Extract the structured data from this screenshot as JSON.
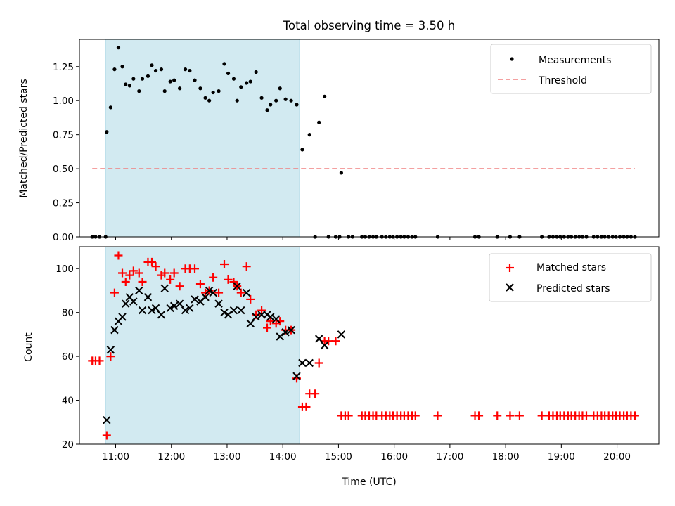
{
  "title": "Total observing time = 3.50 h",
  "chart_data": [
    {
      "type": "scatter",
      "ylabel": "Matched/Predicted stars",
      "ylim": [
        0,
        1.45
      ],
      "yticks": [
        "0.00",
        "0.25",
        "0.50",
        "0.75",
        "1.00",
        "1.25"
      ],
      "xlim": [
        10.35,
        20.75
      ],
      "highlight_span": [
        10.82,
        14.3
      ],
      "threshold": {
        "name": "Threshold",
        "value": 0.5,
        "x": [
          10.58,
          20.32
        ],
        "color": "#f08080"
      },
      "legend": {
        "position": "top-right",
        "entries": [
          "Measurements",
          "Threshold"
        ]
      },
      "series": [
        {
          "name": "Measurements",
          "marker": "dot",
          "color": "#000000",
          "points": [
            [
              10.58,
              0
            ],
            [
              10.64,
              0
            ],
            [
              10.71,
              0
            ],
            [
              10.82,
              0
            ],
            [
              10.84,
              0.77
            ],
            [
              10.91,
              0.95
            ],
            [
              10.98,
              1.23
            ],
            [
              11.05,
              1.39
            ],
            [
              11.12,
              1.25
            ],
            [
              11.18,
              1.12
            ],
            [
              11.25,
              1.11
            ],
            [
              11.32,
              1.16
            ],
            [
              11.42,
              1.07
            ],
            [
              11.48,
              1.16
            ],
            [
              11.58,
              1.18
            ],
            [
              11.65,
              1.26
            ],
            [
              11.72,
              1.22
            ],
            [
              11.82,
              1.23
            ],
            [
              11.88,
              1.07
            ],
            [
              11.98,
              1.14
            ],
            [
              12.05,
              1.15
            ],
            [
              12.15,
              1.09
            ],
            [
              12.25,
              1.23
            ],
            [
              12.33,
              1.22
            ],
            [
              12.42,
              1.15
            ],
            [
              12.52,
              1.09
            ],
            [
              12.61,
              1.02
            ],
            [
              12.68,
              1.0
            ],
            [
              12.75,
              1.06
            ],
            [
              12.85,
              1.07
            ],
            [
              12.95,
              1.27
            ],
            [
              13.02,
              1.2
            ],
            [
              13.12,
              1.16
            ],
            [
              13.18,
              1.0
            ],
            [
              13.25,
              1.1
            ],
            [
              13.35,
              1.13
            ],
            [
              13.42,
              1.14
            ],
            [
              13.52,
              1.21
            ],
            [
              13.62,
              1.02
            ],
            [
              13.72,
              0.93
            ],
            [
              13.78,
              0.97
            ],
            [
              13.88,
              1.0
            ],
            [
              13.95,
              1.09
            ],
            [
              14.05,
              1.01
            ],
            [
              14.15,
              1.0
            ],
            [
              14.25,
              0.97
            ],
            [
              14.35,
              0.64
            ],
            [
              14.48,
              0.75
            ],
            [
              14.58,
              0
            ],
            [
              14.65,
              0.84
            ],
            [
              14.75,
              1.03
            ],
            [
              14.82,
              0
            ],
            [
              14.95,
              0
            ],
            [
              15.02,
              0
            ],
            [
              15.05,
              0.47
            ],
            [
              15.18,
              0
            ],
            [
              15.25,
              0
            ],
            [
              15.42,
              0
            ],
            [
              15.48,
              0
            ],
            [
              15.55,
              0
            ],
            [
              15.62,
              0
            ],
            [
              15.68,
              0
            ],
            [
              15.78,
              0
            ],
            [
              15.85,
              0
            ],
            [
              15.92,
              0
            ],
            [
              15.98,
              0
            ],
            [
              16.05,
              0
            ],
            [
              16.12,
              0
            ],
            [
              16.18,
              0
            ],
            [
              16.25,
              0
            ],
            [
              16.32,
              0
            ],
            [
              16.38,
              0
            ],
            [
              16.78,
              0
            ],
            [
              17.45,
              0
            ],
            [
              17.52,
              0
            ],
            [
              17.85,
              0
            ],
            [
              18.08,
              0
            ],
            [
              18.25,
              0
            ],
            [
              18.65,
              0
            ],
            [
              18.78,
              0
            ],
            [
              18.85,
              0
            ],
            [
              18.92,
              0
            ],
            [
              18.98,
              0
            ],
            [
              19.05,
              0
            ],
            [
              19.12,
              0
            ],
            [
              19.18,
              0
            ],
            [
              19.25,
              0
            ],
            [
              19.32,
              0
            ],
            [
              19.38,
              0
            ],
            [
              19.45,
              0
            ],
            [
              19.58,
              0
            ],
            [
              19.65,
              0
            ],
            [
              19.72,
              0
            ],
            [
              19.78,
              0
            ],
            [
              19.85,
              0
            ],
            [
              19.92,
              0
            ],
            [
              19.98,
              0
            ],
            [
              20.05,
              0
            ],
            [
              20.12,
              0
            ],
            [
              20.18,
              0
            ],
            [
              20.25,
              0
            ],
            [
              20.32,
              0
            ]
          ]
        }
      ]
    },
    {
      "type": "scatter",
      "xlabel": "Time (UTC)",
      "ylabel": "Count",
      "ylim": [
        20,
        110
      ],
      "yticks": [
        "20",
        "40",
        "60",
        "80",
        "100"
      ],
      "xlim": [
        10.35,
        20.75
      ],
      "xticks": [
        "11:00",
        "12:00",
        "13:00",
        "14:00",
        "15:00",
        "16:00",
        "17:00",
        "18:00",
        "19:00",
        "20:00"
      ],
      "highlight_span": [
        10.82,
        14.3
      ],
      "legend": {
        "position": "top-right",
        "entries": [
          "Matched stars",
          "Predicted stars"
        ]
      },
      "series": [
        {
          "name": "Matched stars",
          "marker": "plus",
          "color": "#ff0000",
          "points": [
            [
              10.58,
              58
            ],
            [
              10.64,
              58
            ],
            [
              10.71,
              58
            ],
            [
              10.84,
              24
            ],
            [
              10.91,
              60
            ],
            [
              10.98,
              89
            ],
            [
              11.05,
              106
            ],
            [
              11.12,
              98
            ],
            [
              11.18,
              94
            ],
            [
              11.25,
              97
            ],
            [
              11.32,
              99
            ],
            [
              11.42,
              98
            ],
            [
              11.48,
              94
            ],
            [
              11.58,
              103
            ],
            [
              11.65,
              103
            ],
            [
              11.72,
              101
            ],
            [
              11.82,
              97
            ],
            [
              11.88,
              98
            ],
            [
              11.98,
              95
            ],
            [
              12.05,
              98
            ],
            [
              12.15,
              92
            ],
            [
              12.25,
              100
            ],
            [
              12.33,
              100
            ],
            [
              12.42,
              100
            ],
            [
              12.52,
              93
            ],
            [
              12.61,
              89
            ],
            [
              12.68,
              90
            ],
            [
              12.75,
              96
            ],
            [
              12.85,
              89
            ],
            [
              12.95,
              102
            ],
            [
              13.02,
              95
            ],
            [
              13.12,
              94
            ],
            [
              13.18,
              92
            ],
            [
              13.25,
              89
            ],
            [
              13.35,
              101
            ],
            [
              13.42,
              86
            ],
            [
              13.52,
              79
            ],
            [
              13.62,
              81
            ],
            [
              13.72,
              73
            ],
            [
              13.78,
              76
            ],
            [
              13.88,
              75
            ],
            [
              13.95,
              76
            ],
            [
              14.05,
              72
            ],
            [
              14.15,
              72
            ],
            [
              14.25,
              50
            ],
            [
              14.35,
              37
            ],
            [
              14.42,
              37
            ],
            [
              14.48,
              43
            ],
            [
              14.58,
              43
            ],
            [
              14.65,
              57
            ],
            [
              14.75,
              67
            ],
            [
              14.82,
              67
            ],
            [
              14.95,
              67
            ],
            [
              15.05,
              33
            ],
            [
              15.12,
              33
            ],
            [
              15.18,
              33
            ],
            [
              15.42,
              33
            ],
            [
              15.48,
              33
            ],
            [
              15.55,
              33
            ],
            [
              15.62,
              33
            ],
            [
              15.68,
              33
            ],
            [
              15.78,
              33
            ],
            [
              15.85,
              33
            ],
            [
              15.92,
              33
            ],
            [
              15.98,
              33
            ],
            [
              16.05,
              33
            ],
            [
              16.12,
              33
            ],
            [
              16.18,
              33
            ],
            [
              16.25,
              33
            ],
            [
              16.32,
              33
            ],
            [
              16.38,
              33
            ],
            [
              16.78,
              33
            ],
            [
              17.45,
              33
            ],
            [
              17.52,
              33
            ],
            [
              17.85,
              33
            ],
            [
              18.08,
              33
            ],
            [
              18.25,
              33
            ],
            [
              18.65,
              33
            ],
            [
              18.78,
              33
            ],
            [
              18.85,
              33
            ],
            [
              18.92,
              33
            ],
            [
              18.98,
              33
            ],
            [
              19.05,
              33
            ],
            [
              19.12,
              33
            ],
            [
              19.18,
              33
            ],
            [
              19.25,
              33
            ],
            [
              19.32,
              33
            ],
            [
              19.38,
              33
            ],
            [
              19.45,
              33
            ],
            [
              19.58,
              33
            ],
            [
              19.65,
              33
            ],
            [
              19.72,
              33
            ],
            [
              19.78,
              33
            ],
            [
              19.85,
              33
            ],
            [
              19.92,
              33
            ],
            [
              19.98,
              33
            ],
            [
              20.05,
              33
            ],
            [
              20.12,
              33
            ],
            [
              20.18,
              33
            ],
            [
              20.25,
              33
            ],
            [
              20.32,
              33
            ]
          ]
        },
        {
          "name": "Predicted stars",
          "marker": "x",
          "color": "#000000",
          "points": [
            [
              10.84,
              31
            ],
            [
              10.91,
              63
            ],
            [
              10.98,
              72
            ],
            [
              11.05,
              76
            ],
            [
              11.12,
              78
            ],
            [
              11.18,
              84
            ],
            [
              11.25,
              87
            ],
            [
              11.32,
              85
            ],
            [
              11.42,
              90
            ],
            [
              11.48,
              81
            ],
            [
              11.58,
              87
            ],
            [
              11.65,
              81
            ],
            [
              11.72,
              82
            ],
            [
              11.82,
              79
            ],
            [
              11.88,
              91
            ],
            [
              11.98,
              82
            ],
            [
              12.05,
              83
            ],
            [
              12.15,
              84
            ],
            [
              12.25,
              81
            ],
            [
              12.33,
              82
            ],
            [
              12.42,
              86
            ],
            [
              12.52,
              85
            ],
            [
              12.61,
              87
            ],
            [
              12.68,
              90
            ],
            [
              12.75,
              89
            ],
            [
              12.85,
              84
            ],
            [
              12.95,
              80
            ],
            [
              13.02,
              79
            ],
            [
              13.12,
              81
            ],
            [
              13.18,
              92
            ],
            [
              13.25,
              81
            ],
            [
              13.35,
              89
            ],
            [
              13.42,
              75
            ],
            [
              13.52,
              78
            ],
            [
              13.62,
              79
            ],
            [
              13.72,
              79
            ],
            [
              13.78,
              78
            ],
            [
              13.88,
              77
            ],
            [
              13.95,
              69
            ],
            [
              14.05,
              71
            ],
            [
              14.15,
              72
            ],
            [
              14.25,
              51
            ],
            [
              14.35,
              57
            ],
            [
              14.48,
              57
            ],
            [
              14.65,
              68
            ],
            [
              14.75,
              65
            ],
            [
              15.05,
              70
            ]
          ]
        }
      ]
    }
  ]
}
